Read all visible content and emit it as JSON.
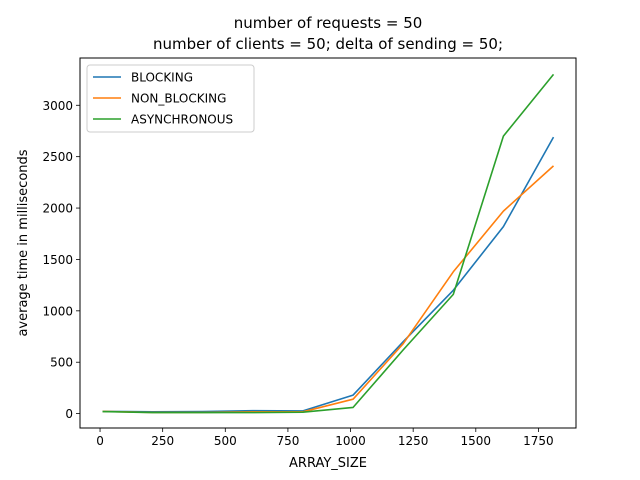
{
  "chart_data": {
    "type": "line",
    "title": "number of requests = 50",
    "subtitle": "number of clients = 50; delta of sending = 50;",
    "xlabel": "ARRAY_SIZE",
    "ylabel": "average time in milliseconds",
    "xlim": [
      -80,
      1900
    ],
    "ylim": [
      -140,
      3460
    ],
    "xticks": [
      0,
      250,
      500,
      750,
      1000,
      1250,
      1500,
      1750
    ],
    "yticks": [
      0,
      500,
      1000,
      1500,
      2000,
      2500,
      3000
    ],
    "x": [
      10,
      210,
      410,
      610,
      810,
      1010,
      1210,
      1410,
      1610,
      1810
    ],
    "grid": false,
    "legend_position": "upper-left",
    "series": [
      {
        "name": "BLOCKING",
        "color": "#1f77b4",
        "values": [
          22,
          18,
          20,
          28,
          26,
          180,
          700,
          1200,
          1820,
          2690
        ]
      },
      {
        "name": "NON_BLOCKING",
        "color": "#ff7f0e",
        "values": [
          22,
          12,
          12,
          18,
          18,
          140,
          680,
          1380,
          1970,
          2410
        ]
      },
      {
        "name": "ASYNCHRONOUS",
        "color": "#2ca02c",
        "values": [
          20,
          10,
          10,
          10,
          14,
          60,
          620,
          1160,
          2700,
          3300
        ]
      }
    ]
  }
}
